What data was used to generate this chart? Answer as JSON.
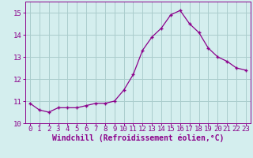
{
  "x": [
    0,
    1,
    2,
    3,
    4,
    5,
    6,
    7,
    8,
    9,
    10,
    11,
    12,
    13,
    14,
    15,
    16,
    17,
    18,
    19,
    20,
    21,
    22,
    23
  ],
  "y": [
    10.9,
    10.6,
    10.5,
    10.7,
    10.7,
    10.7,
    10.8,
    10.9,
    10.9,
    11.0,
    11.5,
    12.2,
    13.3,
    13.9,
    14.3,
    14.9,
    15.1,
    14.5,
    14.1,
    13.4,
    13.0,
    12.8,
    12.5,
    12.4
  ],
  "line_color": "#8B008B",
  "marker_color": "#8B008B",
  "bg_color": "#d4eeee",
  "grid_color": "#aacccc",
  "xlabel": "Windchill (Refroidissement éolien,°C)",
  "xlim": [
    -0.5,
    23.5
  ],
  "ylim": [
    10.0,
    15.5
  ],
  "yticks": [
    10,
    11,
    12,
    13,
    14,
    15
  ],
  "xticks": [
    0,
    1,
    2,
    3,
    4,
    5,
    6,
    7,
    8,
    9,
    10,
    11,
    12,
    13,
    14,
    15,
    16,
    17,
    18,
    19,
    20,
    21,
    22,
    23
  ],
  "tick_font_size": 6.5,
  "label_font_size": 7.0
}
